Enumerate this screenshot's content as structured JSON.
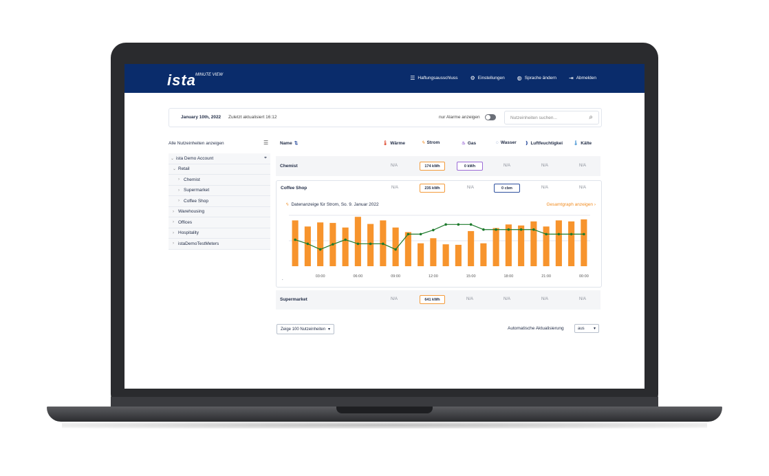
{
  "header": {
    "logo": "ista",
    "logo_sub": "MINUTE VIEW",
    "nav": [
      {
        "label": "Haftungsausschluss",
        "icon": "list-icon"
      },
      {
        "label": "Einstellungen",
        "icon": "gear-icon"
      },
      {
        "label": "Sprache ändern",
        "icon": "globe-icon"
      },
      {
        "label": "Abmelden",
        "icon": "logout-icon"
      }
    ]
  },
  "topbar": {
    "date": "January 10th, 2022",
    "updated": "Zuletzt aktualisiert 16:12",
    "alarm_label": "nur Alarme anzeigen",
    "search_placeholder": "Nutzeinheiten suchen..."
  },
  "sidebar": {
    "heading": "Alle Nutzeinheiten anzeigen",
    "tree": [
      {
        "label": "ista Demo Account",
        "level": 0,
        "chev": "⌄"
      },
      {
        "label": "Retail",
        "level": 1,
        "chev": "⌄"
      },
      {
        "label": "Chemist",
        "level": 2,
        "chev": "›"
      },
      {
        "label": "Supermarket",
        "level": 2,
        "chev": "›"
      },
      {
        "label": "Coffee Shop",
        "level": 2,
        "chev": "›"
      },
      {
        "label": "Warehousing",
        "level": 1,
        "chev": "›"
      },
      {
        "label": "Offices",
        "level": 1,
        "chev": "›"
      },
      {
        "label": "Hospitality",
        "level": 1,
        "chev": "›"
      },
      {
        "label": "istaDemoTestMeters",
        "level": 1,
        "chev": "›"
      }
    ]
  },
  "table": {
    "name_header": "Name",
    "columns": [
      {
        "label": "Wärme",
        "icon": "thermometer-icon",
        "color": "#e0533a"
      },
      {
        "label": "Strom",
        "icon": "lightning-icon",
        "color": "#f18a1d"
      },
      {
        "label": "Gas",
        "icon": "flame-icon",
        "color": "#9b6ad6"
      },
      {
        "label": "Wasser",
        "icon": "drop-icon",
        "color": "#2c4f9e"
      },
      {
        "label": "Luftfeuchtigkei",
        "icon": "humidity-icon",
        "color": "#2c4f9e"
      },
      {
        "label": "Kälte",
        "icon": "thermometer-cold-icon",
        "color": "#5aa0d8"
      }
    ],
    "rows": [
      {
        "name": "Chemist",
        "values": [
          "N/A",
          "174 kWh",
          "0 kWh",
          "N/A",
          "N/A",
          "N/A"
        ]
      },
      {
        "name": "Coffee Shop",
        "values": [
          "N/A",
          "235 kWh",
          "N/A",
          "0 cbm",
          "N/A",
          "N/A"
        ]
      },
      {
        "name": "Supermarket",
        "values": [
          "N/A",
          "641 kWh",
          "N/A",
          "N/A",
          "N/A",
          "N/A"
        ]
      }
    ]
  },
  "detail": {
    "title": "Datenanzeige für Strom, So. 9. Januar 2022",
    "link": "Gesamtgraph anzeigen",
    "dot_label": "."
  },
  "chart_data": {
    "type": "bar",
    "x_ticks": [
      "03:00",
      "06:00",
      "09:00",
      "12:00",
      "15:00",
      "18:00",
      "21:00",
      "00:00"
    ],
    "bar_color": "#f7942d",
    "line_color": "#1d7a2c",
    "ylim": [
      0,
      1
    ],
    "bars": [
      0.9,
      0.78,
      0.86,
      0.85,
      0.76,
      0.97,
      0.83,
      0.9,
      0.76,
      0.67,
      0.45,
      0.55,
      0.43,
      0.42,
      0.69,
      0.45,
      0.75,
      0.82,
      0.8,
      0.88,
      0.78,
      0.9,
      0.88,
      0.92
    ],
    "line": [
      0.52,
      0.44,
      0.33,
      0.43,
      0.52,
      0.44,
      0.44,
      0.44,
      0.33,
      0.63,
      0.63,
      0.71,
      0.82,
      0.82,
      0.82,
      0.72,
      0.72,
      0.72,
      0.72,
      0.72,
      0.63,
      0.63,
      0.63,
      0.63
    ]
  },
  "footer": {
    "page_size": "Zeige 100 Nutzeinheiten",
    "auto_label": "Automatische Aktualisierung",
    "auto_value": "aus"
  }
}
